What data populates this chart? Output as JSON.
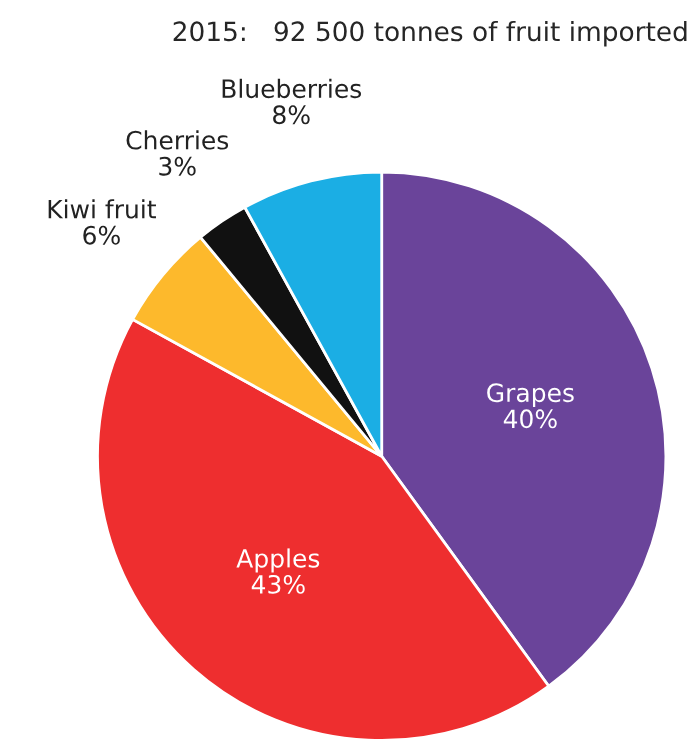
{
  "chart_data": {
    "type": "pie",
    "title": "2015:   92 500 tonnes of fruit imported",
    "categories": [
      "Grapes",
      "Apples",
      "Kiwi fruit",
      "Cherries",
      "Blueberries"
    ],
    "values": [
      40,
      43,
      6,
      3,
      8
    ],
    "value_labels": [
      "40%",
      "43%",
      "6%",
      "3%",
      "8%"
    ],
    "colors": [
      "#6a449a",
      "#ee2e2f",
      "#fdb92c",
      "#111111",
      "#1baee4"
    ]
  }
}
